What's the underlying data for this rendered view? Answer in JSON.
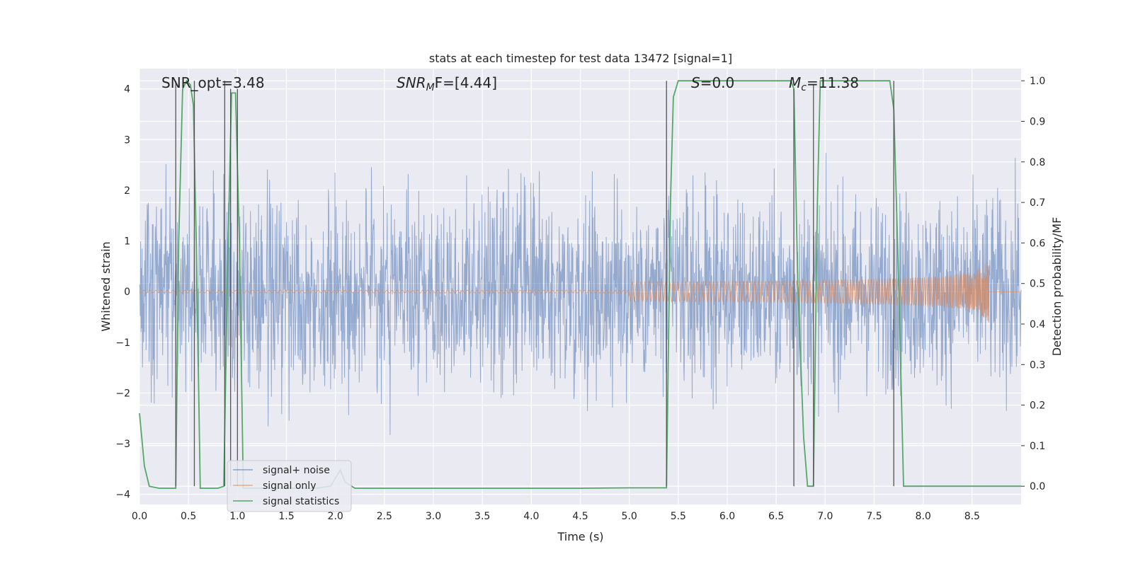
{
  "chart_data": {
    "type": "line",
    "title": "stats at each timestep for test data 13472 [signal=1]",
    "xlabel": "Time (s)",
    "ylabel": "Whitened strain",
    "ylabel_right": "Detection probability/MF",
    "xlim": [
      0,
      9.0
    ],
    "ylim": [
      -4.2,
      4.4
    ],
    "ylim_right": [
      -0.045,
      1.03
    ],
    "xticks": [
      "0.0",
      "0.5",
      "1.0",
      "1.5",
      "2.0",
      "2.5",
      "3.0",
      "3.5",
      "4.0",
      "4.5",
      "5.0",
      "5.5",
      "6.0",
      "6.5",
      "7.0",
      "7.5",
      "8.0",
      "8.5"
    ],
    "yticks": [
      "4",
      "3",
      "2",
      "1",
      "0",
      "−1",
      "−2",
      "−3",
      "−4"
    ],
    "yticks_right": [
      "1.0",
      "0.9",
      "0.8",
      "0.7",
      "0.6",
      "0.5",
      "0.4",
      "0.3",
      "0.2",
      "0.1",
      "0.0"
    ],
    "grid": true,
    "legend_position": "lower-left",
    "annotations": {
      "snr_opt": "SNR_opt=3.48",
      "snr_mf_italic": "SNR",
      "snr_mf_sub": "M",
      "snr_mf_rest": "F=[4.44]",
      "s_italic": "S",
      "s_rest": "=0.0",
      "mc_italic": "M",
      "mc_sub": "c",
      "mc_rest": "=11.38"
    },
    "series": [
      {
        "name": "signal+ noise",
        "color": "#4c72b0",
        "description_kind": "noise",
        "amplitude_envelope": 1.6
      },
      {
        "name": "signal only",
        "color": "#dd8452",
        "chirp_end_time": 8.67,
        "peak_amplitude": 0.7
      },
      {
        "name": "signal statistics",
        "color": "#55a868",
        "x": [
          0.0,
          0.05,
          0.1,
          0.2,
          0.3,
          0.37,
          0.4,
          0.44,
          0.48,
          0.52,
          0.55,
          0.58,
          0.62,
          0.7,
          0.8,
          0.86,
          0.9,
          0.94,
          0.98,
          1.02,
          1.06,
          1.2,
          1.5,
          1.8,
          1.95,
          2.05,
          2.1,
          2.2,
          2.5,
          3.0,
          4.0,
          4.5,
          5.0,
          5.3,
          5.38,
          5.42,
          5.45,
          5.5,
          5.6,
          6.0,
          6.5,
          6.65,
          6.68,
          6.72,
          6.78,
          6.82,
          6.88,
          6.92,
          6.95,
          7.0,
          7.2,
          7.5,
          7.6,
          7.66,
          7.7,
          7.75,
          7.8,
          8.0,
          8.5,
          9.0
        ],
        "y": [
          0.18,
          0.05,
          0.0,
          -0.005,
          -0.005,
          -0.005,
          0.6,
          0.98,
          1.0,
          0.99,
          0.94,
          0.6,
          -0.005,
          -0.005,
          -0.005,
          0.0,
          0.55,
          0.97,
          0.97,
          0.6,
          -0.005,
          -0.005,
          -0.005,
          -0.005,
          0.0,
          0.04,
          0.01,
          -0.005,
          -0.005,
          -0.005,
          -0.005,
          -0.005,
          -0.004,
          -0.004,
          -0.004,
          0.7,
          0.96,
          1.0,
          1.0,
          1.0,
          1.0,
          1.0,
          0.98,
          0.5,
          0.12,
          0.0,
          0.0,
          0.7,
          1.0,
          1.0,
          1.0,
          1.0,
          1.0,
          1.0,
          0.93,
          0.5,
          0.0,
          0.0,
          0.0,
          0.0
        ]
      },
      {
        "name": "",
        "color": "#555555",
        "kind": "vertical-markers",
        "x": [
          0.37,
          0.56,
          0.87,
          0.93,
          1.0,
          5.38,
          6.68,
          6.88,
          7.7
        ],
        "y_top": [
          1.0,
          1.0,
          1.0,
          0.98,
          0.98,
          1.0,
          0.98,
          0.99,
          1.0
        ]
      }
    ],
    "legend": [
      {
        "label": "signal+ noise",
        "color": "#4c72b0"
      },
      {
        "label": "signal only",
        "color": "#dd8452"
      },
      {
        "label": "signal statistics",
        "color": "#55a868"
      }
    ]
  }
}
